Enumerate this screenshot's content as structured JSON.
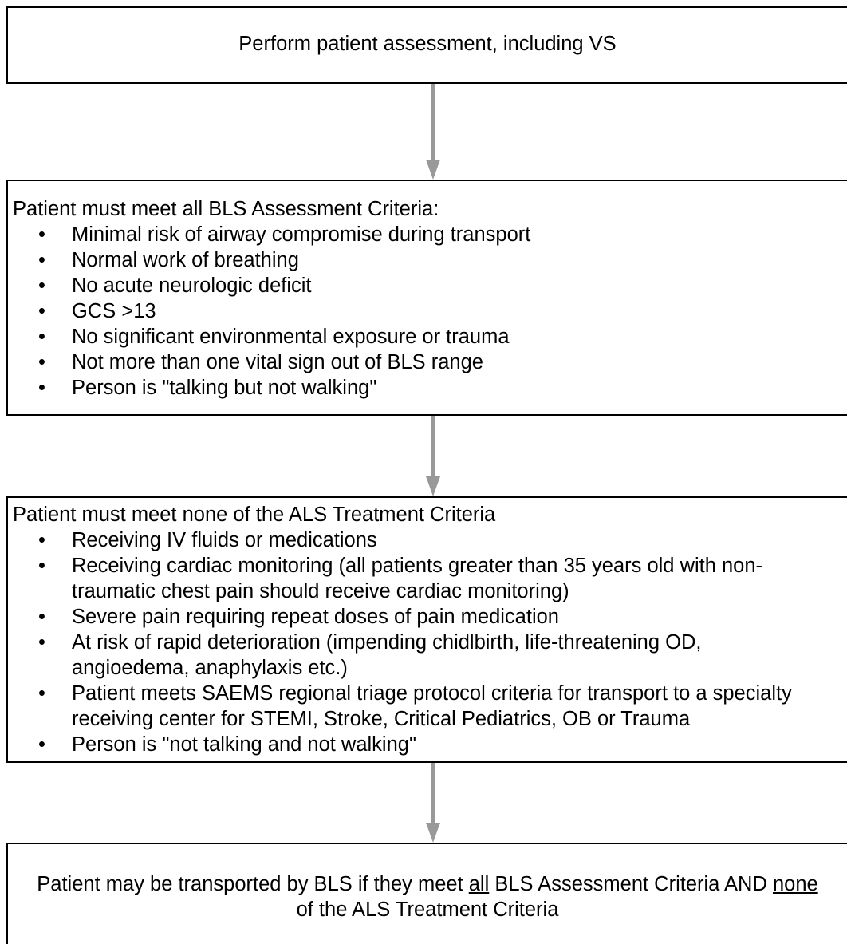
{
  "flowchart": {
    "step1": {
      "text": "Perform patient assessment, including VS"
    },
    "step2": {
      "title": "Patient must meet all BLS Assessment Criteria:",
      "items": [
        "Minimal risk of airway compromise during transport",
        "Normal work of breathing",
        "No acute neurologic deficit",
        "GCS >13",
        "No significant environmental exposure or trauma",
        "Not more than one vital sign out of BLS range",
        "Person is \"talking but not walking\""
      ]
    },
    "step3": {
      "title": "Patient must meet none of the ALS Treatment Criteria",
      "items": [
        "Receiving IV fluids or medications",
        "Receiving cardiac monitoring (all patients greater than 35 years old with non-traumatic chest pain should receive cardiac monitoring)",
        "Severe pain requiring repeat doses of pain medication",
        "At risk of rapid deterioration (impending chidlbirth, life-threatening OD, angioedema, anaphylaxis etc.)",
        "Patient meets SAEMS regional triage protocol criteria for transport to a specialty receiving center for STEMI, Stroke, Critical Pediatrics, OB or Trauma",
        "Person is \"not talking and not walking\""
      ]
    },
    "step4": {
      "part1": "Patient may be transported by BLS if they meet ",
      "all": "all",
      "part2": " BLS Assessment Criteria AND ",
      "none": "none",
      "part3": " of the ALS Treatment Criteria"
    },
    "bullet": "•"
  },
  "colors": {
    "border": "#000000",
    "arrow": "#999999",
    "background": "#ffffff"
  }
}
